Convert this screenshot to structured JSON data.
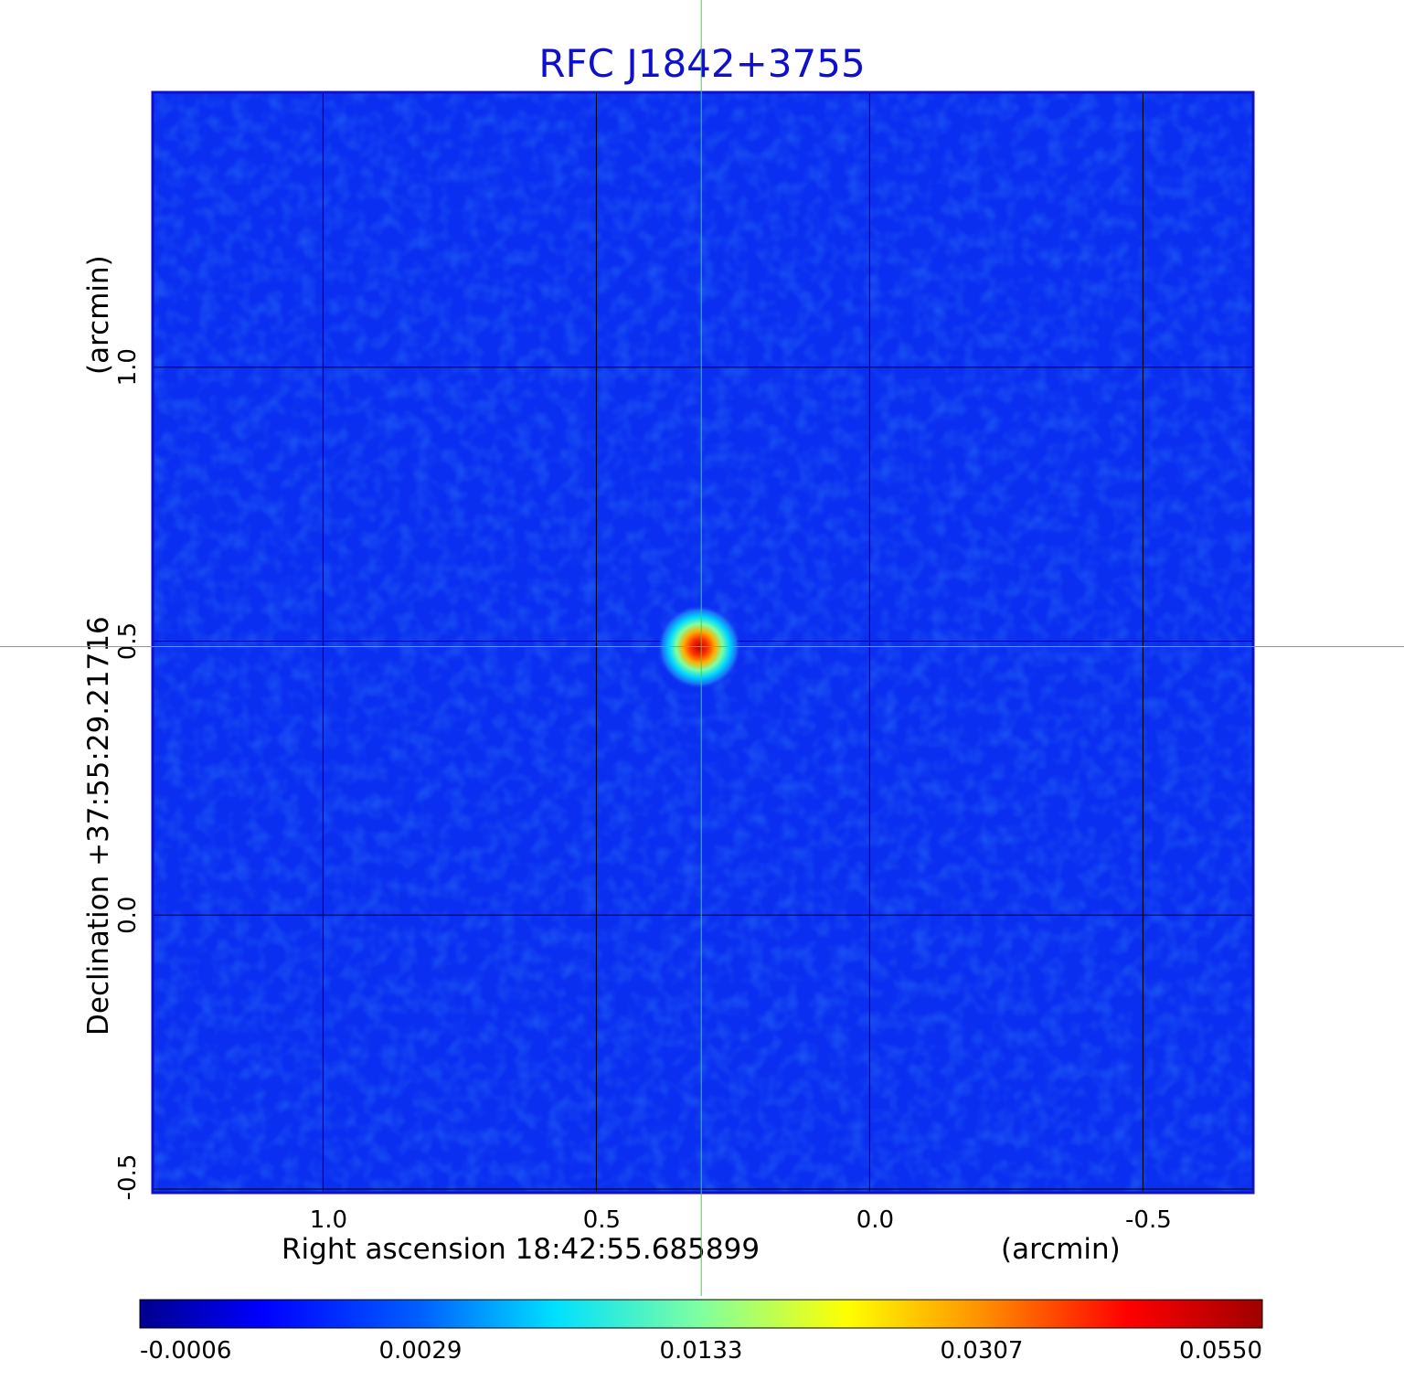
{
  "chart_data": {
    "type": "heatmap",
    "title": "RFC J1842+3755",
    "xlabel": "Right ascension  18:42:55.685899",
    "xunit": "(arcmin)",
    "ylabel": "Declination  +37:55:29.21716",
    "yunit": "(arcmin)",
    "x_ticks": [
      1.0,
      0.5,
      0.0,
      -0.5
    ],
    "x_tick_labels": [
      "1.0",
      "0.5",
      "0.0",
      "-0.5"
    ],
    "y_ticks": [
      1.0,
      0.5,
      0.0,
      -0.5
    ],
    "y_tick_labels": [
      "1.0",
      "0.5",
      "0.0",
      "-0.5"
    ],
    "xlim": [
      1.31,
      -0.7
    ],
    "ylim": [
      -0.505,
      1.5
    ],
    "grid": true,
    "crosshair": {
      "x": 0.308,
      "y": 0.49
    },
    "source_peak": {
      "x": 0.308,
      "y": 0.49,
      "value": 0.055
    },
    "colormap": "jet",
    "colorbar_ticks": [
      -0.0006,
      0.0029,
      0.0133,
      0.0307,
      0.055
    ],
    "colorbar_tick_labels": [
      "-0.0006",
      "0.0029",
      "0.0133",
      "0.0307",
      "0.0550"
    ],
    "colors": {
      "background_noise": "#0b2ff0",
      "frame": "#1010cc",
      "grid": "#000000",
      "crosshair": "#33dd33",
      "title": "#1010cc"
    }
  }
}
